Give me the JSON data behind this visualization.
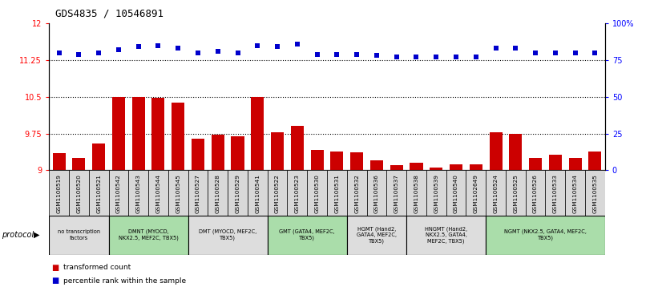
{
  "title": "GDS4835 / 10546891",
  "samples": [
    "GSM1100519",
    "GSM1100520",
    "GSM1100521",
    "GSM1100542",
    "GSM1100543",
    "GSM1100544",
    "GSM1100545",
    "GSM1100527",
    "GSM1100528",
    "GSM1100529",
    "GSM1100541",
    "GSM1100522",
    "GSM1100523",
    "GSM1100530",
    "GSM1100531",
    "GSM1100532",
    "GSM1100536",
    "GSM1100537",
    "GSM1100538",
    "GSM1100539",
    "GSM1100540",
    "GSM1102649",
    "GSM1100524",
    "GSM1100525",
    "GSM1100526",
    "GSM1100533",
    "GSM1100534",
    "GSM1100535"
  ],
  "bar_values": [
    9.35,
    9.25,
    9.55,
    10.5,
    10.5,
    10.48,
    10.38,
    9.65,
    9.72,
    9.69,
    10.5,
    9.78,
    9.9,
    9.42,
    9.38,
    9.36,
    9.2,
    9.1,
    9.15,
    9.05,
    9.12,
    9.12,
    9.78,
    9.75,
    9.25,
    9.32,
    9.25,
    9.38
  ],
  "dot_values": [
    80,
    79,
    80,
    82,
    84,
    85,
    83,
    80,
    81,
    80,
    85,
    84,
    86,
    79,
    79,
    79,
    78,
    77,
    77,
    77,
    77,
    77,
    83,
    83,
    80,
    80,
    80,
    80
  ],
  "bar_color": "#cc0000",
  "dot_color": "#0000cc",
  "ylim_left": [
    9.0,
    12.0
  ],
  "ylim_right": [
    0,
    100
  ],
  "yticks_left": [
    9.0,
    9.75,
    10.5,
    11.25,
    12.0
  ],
  "ytick_labels_left": [
    "9",
    "9.75",
    "10.5",
    "11.25",
    "12"
  ],
  "yticks_right": [
    0,
    25,
    50,
    75,
    100
  ],
  "ytick_labels_right": [
    "0",
    "25",
    "50",
    "75",
    "100%"
  ],
  "hlines": [
    9.75,
    10.5,
    11.25
  ],
  "protocols": [
    {
      "label": "no transcription\nfactors",
      "start": 0,
      "end": 3,
      "color": "#dddddd"
    },
    {
      "label": "DMNT (MYOCD,\nNKX2.5, MEF2C, TBX5)",
      "start": 3,
      "end": 7,
      "color": "#aaddaa"
    },
    {
      "label": "DMT (MYOCD, MEF2C,\nTBX5)",
      "start": 7,
      "end": 11,
      "color": "#dddddd"
    },
    {
      "label": "GMT (GATA4, MEF2C,\nTBX5)",
      "start": 11,
      "end": 15,
      "color": "#aaddaa"
    },
    {
      "label": "HGMT (Hand2,\nGATA4, MEF2C,\nTBX5)",
      "start": 15,
      "end": 18,
      "color": "#dddddd"
    },
    {
      "label": "HNGMT (Hand2,\nNKX2.5, GATA4,\nMEF2C, TBX5)",
      "start": 18,
      "end": 22,
      "color": "#dddddd"
    },
    {
      "label": "NGMT (NKX2.5, GATA4, MEF2C,\nTBX5)",
      "start": 22,
      "end": 28,
      "color": "#aaddaa"
    }
  ],
  "legend_labels": [
    "transformed count",
    "percentile rank within the sample"
  ],
  "legend_colors": [
    "#cc0000",
    "#0000cc"
  ],
  "bg_color": "#ffffff",
  "ticklabel_gray_bg": "#d8d8d8"
}
